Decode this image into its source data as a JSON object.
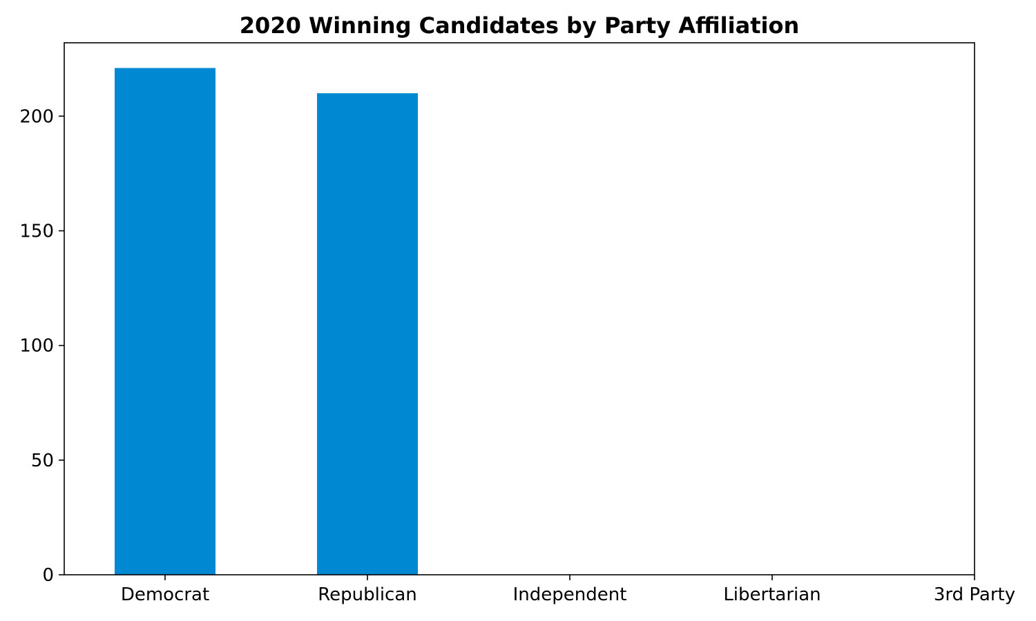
{
  "chart_data": {
    "type": "bar",
    "title": "2020 Winning Candidates by Party Affiliation",
    "xlabel": "",
    "ylabel": "",
    "categories": [
      "Democrat",
      "Republican",
      "Independent",
      "Libertarian",
      "3rd Party"
    ],
    "values": [
      221,
      210,
      0,
      0,
      0
    ],
    "ylim": [
      0,
      232
    ],
    "yticks": [
      0,
      50,
      100,
      150,
      200
    ],
    "bar_color": "#0089d2",
    "grid": false,
    "legend": "none"
  }
}
